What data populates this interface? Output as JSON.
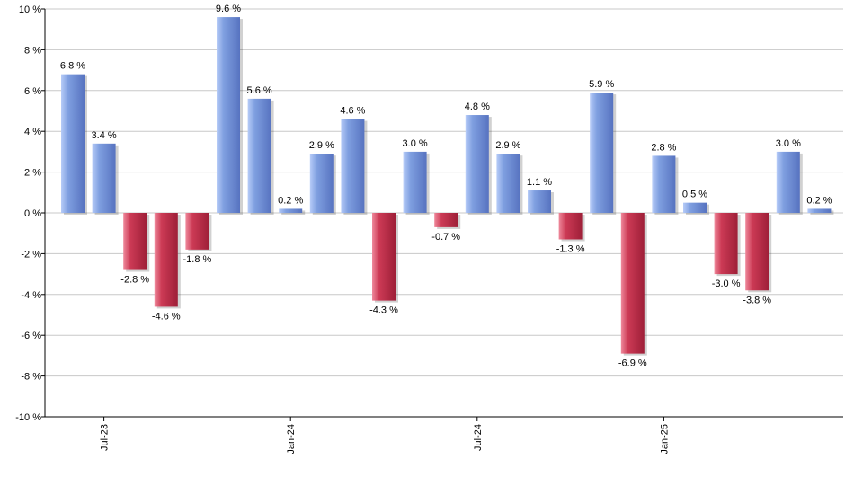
{
  "chart_data": {
    "type": "bar",
    "title": "",
    "xlabel": "",
    "ylabel": "",
    "ylim": [
      -10,
      10
    ],
    "yticks": [
      10,
      8,
      6,
      4,
      2,
      0,
      -2,
      -4,
      -6,
      -8,
      -10
    ],
    "ytick_suffix": " %",
    "grid": true,
    "legend": "none",
    "x_tick_labels": [
      {
        "label": "Jul-23",
        "index": 1
      },
      {
        "label": "Jan-24",
        "index": 7
      },
      {
        "label": "Jul-24",
        "index": 13
      },
      {
        "label": "Jan-25",
        "index": 19
      }
    ],
    "values": [
      6.8,
      3.4,
      -2.8,
      -4.6,
      -1.8,
      9.6,
      5.6,
      0.2,
      2.9,
      4.6,
      -4.3,
      3.0,
      -0.7,
      4.8,
      2.9,
      1.1,
      -1.3,
      5.9,
      -6.9,
      2.8,
      0.5,
      -3.0,
      -3.8,
      3.0,
      0.2
    ],
    "data_labels": [
      "6.8 %",
      "3.4 %",
      "-2.8 %",
      "-4.6 %",
      "-1.8 %",
      "9.6 %",
      "5.6 %",
      "0.2 %",
      "2.9 %",
      "4.6 %",
      "-4.3 %",
      "3.0 %",
      "-0.7 %",
      "4.8 %",
      "2.9 %",
      "1.1 %",
      "-1.3 %",
      "5.9 %",
      "-6.9 %",
      "2.8 %",
      "0.5 %",
      "-3.0 %",
      "-3.8 %",
      "3.0 %",
      "0.2 %"
    ],
    "colors": {
      "positive": "#7f9fe0",
      "positive_light": "#b7ccf8",
      "positive_dark": "#5773c0",
      "negative": "#cc3a55",
      "negative_light": "#ef8a9c",
      "negative_dark": "#9e1f38",
      "grid": "#c8c8c8",
      "axis": "#000000"
    }
  }
}
